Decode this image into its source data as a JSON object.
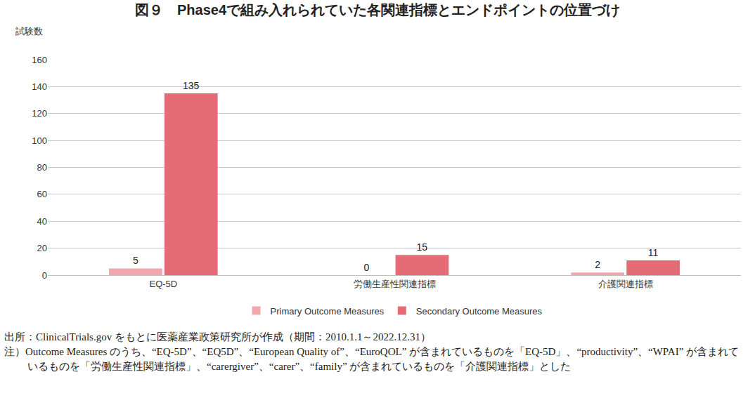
{
  "chart_data": {
    "type": "bar",
    "title": "図９　Phase4で組み入れられていた各関連指標とエンドポイントの位置づけ",
    "y_label": "試験数",
    "categories": [
      "EQ-5D",
      "労働生産性関連指標",
      "介護関連指標"
    ],
    "series": [
      {
        "name": "Primary Outcome Measures",
        "color": "#f2a7ae",
        "values": [
          5,
          0,
          2
        ]
      },
      {
        "name": "Secondary Outcome Measures",
        "color": "#e46c76",
        "values": [
          135,
          15,
          11
        ]
      }
    ],
    "ylim": [
      0,
      160
    ],
    "yticks": [
      0,
      20,
      40,
      60,
      80,
      100,
      120,
      140,
      160
    ],
    "grid": true,
    "data_labels": true,
    "legend": "bottom",
    "annotations": [
      "出所：ClinicalTrials.gov をもとに医薬産業政策研究所が作成（期間：2010.1.1～2022.12.31）",
      "注）Outcome Measures のうち、“EQ-5D”、“EQ5D”、“European Quality of”、“EuroQOL” が含まれているものを「EQ-5D」、“productivity”、“WPAI” が含まれているものを「労働生産性関連指標」、“carergiver”、“carer”、“family” が含まれているものを「介護関連指標」とした"
    ]
  }
}
